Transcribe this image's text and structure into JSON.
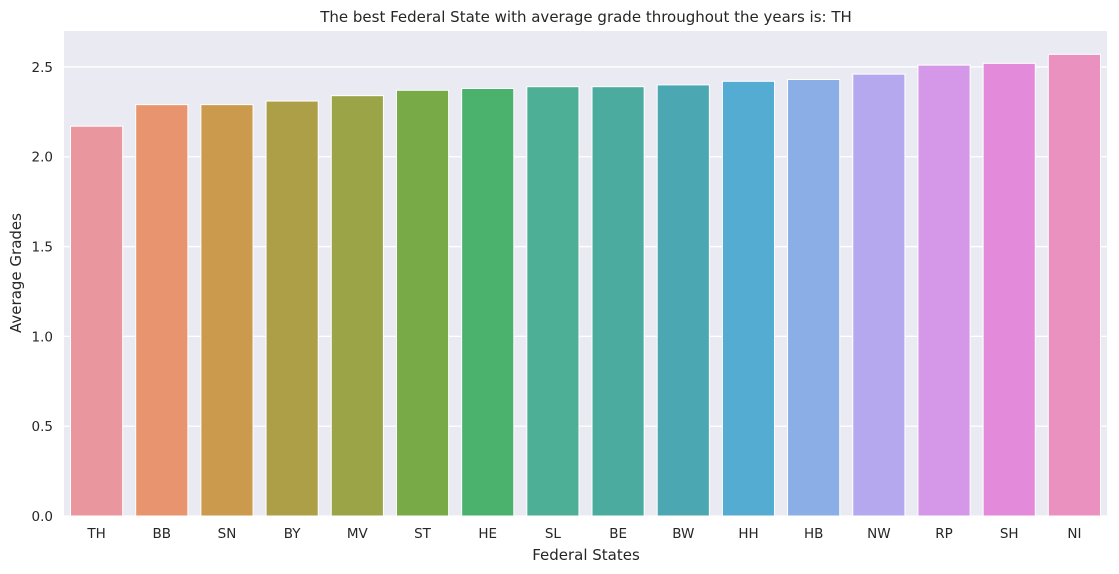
{
  "chart_data": {
    "type": "bar",
    "title": "The best Federal State with average grade throughout the years is: TH",
    "xlabel": "Federal States",
    "ylabel": "Average Grades",
    "ylim": [
      0,
      2.7
    ],
    "yticks": [
      0.0,
      0.5,
      1.0,
      1.5,
      2.0,
      2.5
    ],
    "ytick_labels": [
      "0.0",
      "0.5",
      "1.0",
      "1.5",
      "2.0",
      "2.5"
    ],
    "grid": true,
    "categories": [
      "TH",
      "BB",
      "SN",
      "BY",
      "MV",
      "ST",
      "HE",
      "SL",
      "BE",
      "BW",
      "HH",
      "HB",
      "NW",
      "RP",
      "SH",
      "NI"
    ],
    "values": [
      2.17,
      2.29,
      2.29,
      2.31,
      2.34,
      2.37,
      2.38,
      2.39,
      2.39,
      2.4,
      2.42,
      2.43,
      2.46,
      2.51,
      2.52,
      2.57
    ],
    "colors": [
      "#ea969f",
      "#e8946e",
      "#cb9a4c",
      "#ac9f47",
      "#9ba548",
      "#78ab47",
      "#4bb26e",
      "#4daf95",
      "#4bab9f",
      "#4ba7b1",
      "#54acd2",
      "#8aaee5",
      "#b6a8ee",
      "#d598e8",
      "#e48adb",
      "#ea91bf"
    ],
    "background": "#eaeaf2"
  }
}
